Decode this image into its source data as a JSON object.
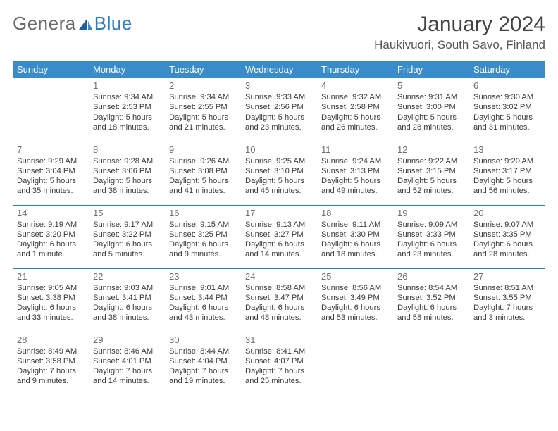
{
  "logo": {
    "partA": "Genera",
    "partB": "Blue"
  },
  "title": "January 2024",
  "location": "Haukivuori, South Savo, Finland",
  "colors": {
    "header_bg": "#3a8bc9",
    "rule": "#2d7bc0",
    "text": "#3b3b3b",
    "daynum": "#6f6f6f",
    "bg": "#ffffff"
  },
  "columns": [
    "Sunday",
    "Monday",
    "Tuesday",
    "Wednesday",
    "Thursday",
    "Friday",
    "Saturday"
  ],
  "weeks": [
    [
      null,
      {
        "n": "1",
        "sr": "9:34 AM",
        "ss": "2:53 PM",
        "dl": "5 hours and 18 minutes."
      },
      {
        "n": "2",
        "sr": "9:34 AM",
        "ss": "2:55 PM",
        "dl": "5 hours and 21 minutes."
      },
      {
        "n": "3",
        "sr": "9:33 AM",
        "ss": "2:56 PM",
        "dl": "5 hours and 23 minutes."
      },
      {
        "n": "4",
        "sr": "9:32 AM",
        "ss": "2:58 PM",
        "dl": "5 hours and 26 minutes."
      },
      {
        "n": "5",
        "sr": "9:31 AM",
        "ss": "3:00 PM",
        "dl": "5 hours and 28 minutes."
      },
      {
        "n": "6",
        "sr": "9:30 AM",
        "ss": "3:02 PM",
        "dl": "5 hours and 31 minutes."
      }
    ],
    [
      {
        "n": "7",
        "sr": "9:29 AM",
        "ss": "3:04 PM",
        "dl": "5 hours and 35 minutes."
      },
      {
        "n": "8",
        "sr": "9:28 AM",
        "ss": "3:06 PM",
        "dl": "5 hours and 38 minutes."
      },
      {
        "n": "9",
        "sr": "9:26 AM",
        "ss": "3:08 PM",
        "dl": "5 hours and 41 minutes."
      },
      {
        "n": "10",
        "sr": "9:25 AM",
        "ss": "3:10 PM",
        "dl": "5 hours and 45 minutes."
      },
      {
        "n": "11",
        "sr": "9:24 AM",
        "ss": "3:13 PM",
        "dl": "5 hours and 49 minutes."
      },
      {
        "n": "12",
        "sr": "9:22 AM",
        "ss": "3:15 PM",
        "dl": "5 hours and 52 minutes."
      },
      {
        "n": "13",
        "sr": "9:20 AM",
        "ss": "3:17 PM",
        "dl": "5 hours and 56 minutes."
      }
    ],
    [
      {
        "n": "14",
        "sr": "9:19 AM",
        "ss": "3:20 PM",
        "dl": "6 hours and 1 minute."
      },
      {
        "n": "15",
        "sr": "9:17 AM",
        "ss": "3:22 PM",
        "dl": "6 hours and 5 minutes."
      },
      {
        "n": "16",
        "sr": "9:15 AM",
        "ss": "3:25 PM",
        "dl": "6 hours and 9 minutes."
      },
      {
        "n": "17",
        "sr": "9:13 AM",
        "ss": "3:27 PM",
        "dl": "6 hours and 14 minutes."
      },
      {
        "n": "18",
        "sr": "9:11 AM",
        "ss": "3:30 PM",
        "dl": "6 hours and 18 minutes."
      },
      {
        "n": "19",
        "sr": "9:09 AM",
        "ss": "3:33 PM",
        "dl": "6 hours and 23 minutes."
      },
      {
        "n": "20",
        "sr": "9:07 AM",
        "ss": "3:35 PM",
        "dl": "6 hours and 28 minutes."
      }
    ],
    [
      {
        "n": "21",
        "sr": "9:05 AM",
        "ss": "3:38 PM",
        "dl": "6 hours and 33 minutes."
      },
      {
        "n": "22",
        "sr": "9:03 AM",
        "ss": "3:41 PM",
        "dl": "6 hours and 38 minutes."
      },
      {
        "n": "23",
        "sr": "9:01 AM",
        "ss": "3:44 PM",
        "dl": "6 hours and 43 minutes."
      },
      {
        "n": "24",
        "sr": "8:58 AM",
        "ss": "3:47 PM",
        "dl": "6 hours and 48 minutes."
      },
      {
        "n": "25",
        "sr": "8:56 AM",
        "ss": "3:49 PM",
        "dl": "6 hours and 53 minutes."
      },
      {
        "n": "26",
        "sr": "8:54 AM",
        "ss": "3:52 PM",
        "dl": "6 hours and 58 minutes."
      },
      {
        "n": "27",
        "sr": "8:51 AM",
        "ss": "3:55 PM",
        "dl": "7 hours and 3 minutes."
      }
    ],
    [
      {
        "n": "28",
        "sr": "8:49 AM",
        "ss": "3:58 PM",
        "dl": "7 hours and 9 minutes."
      },
      {
        "n": "29",
        "sr": "8:46 AM",
        "ss": "4:01 PM",
        "dl": "7 hours and 14 minutes."
      },
      {
        "n": "30",
        "sr": "8:44 AM",
        "ss": "4:04 PM",
        "dl": "7 hours and 19 minutes."
      },
      {
        "n": "31",
        "sr": "8:41 AM",
        "ss": "4:07 PM",
        "dl": "7 hours and 25 minutes."
      },
      null,
      null,
      null
    ]
  ],
  "labels": {
    "sunrise": "Sunrise:",
    "sunset": "Sunset:",
    "daylight": "Daylight:"
  }
}
